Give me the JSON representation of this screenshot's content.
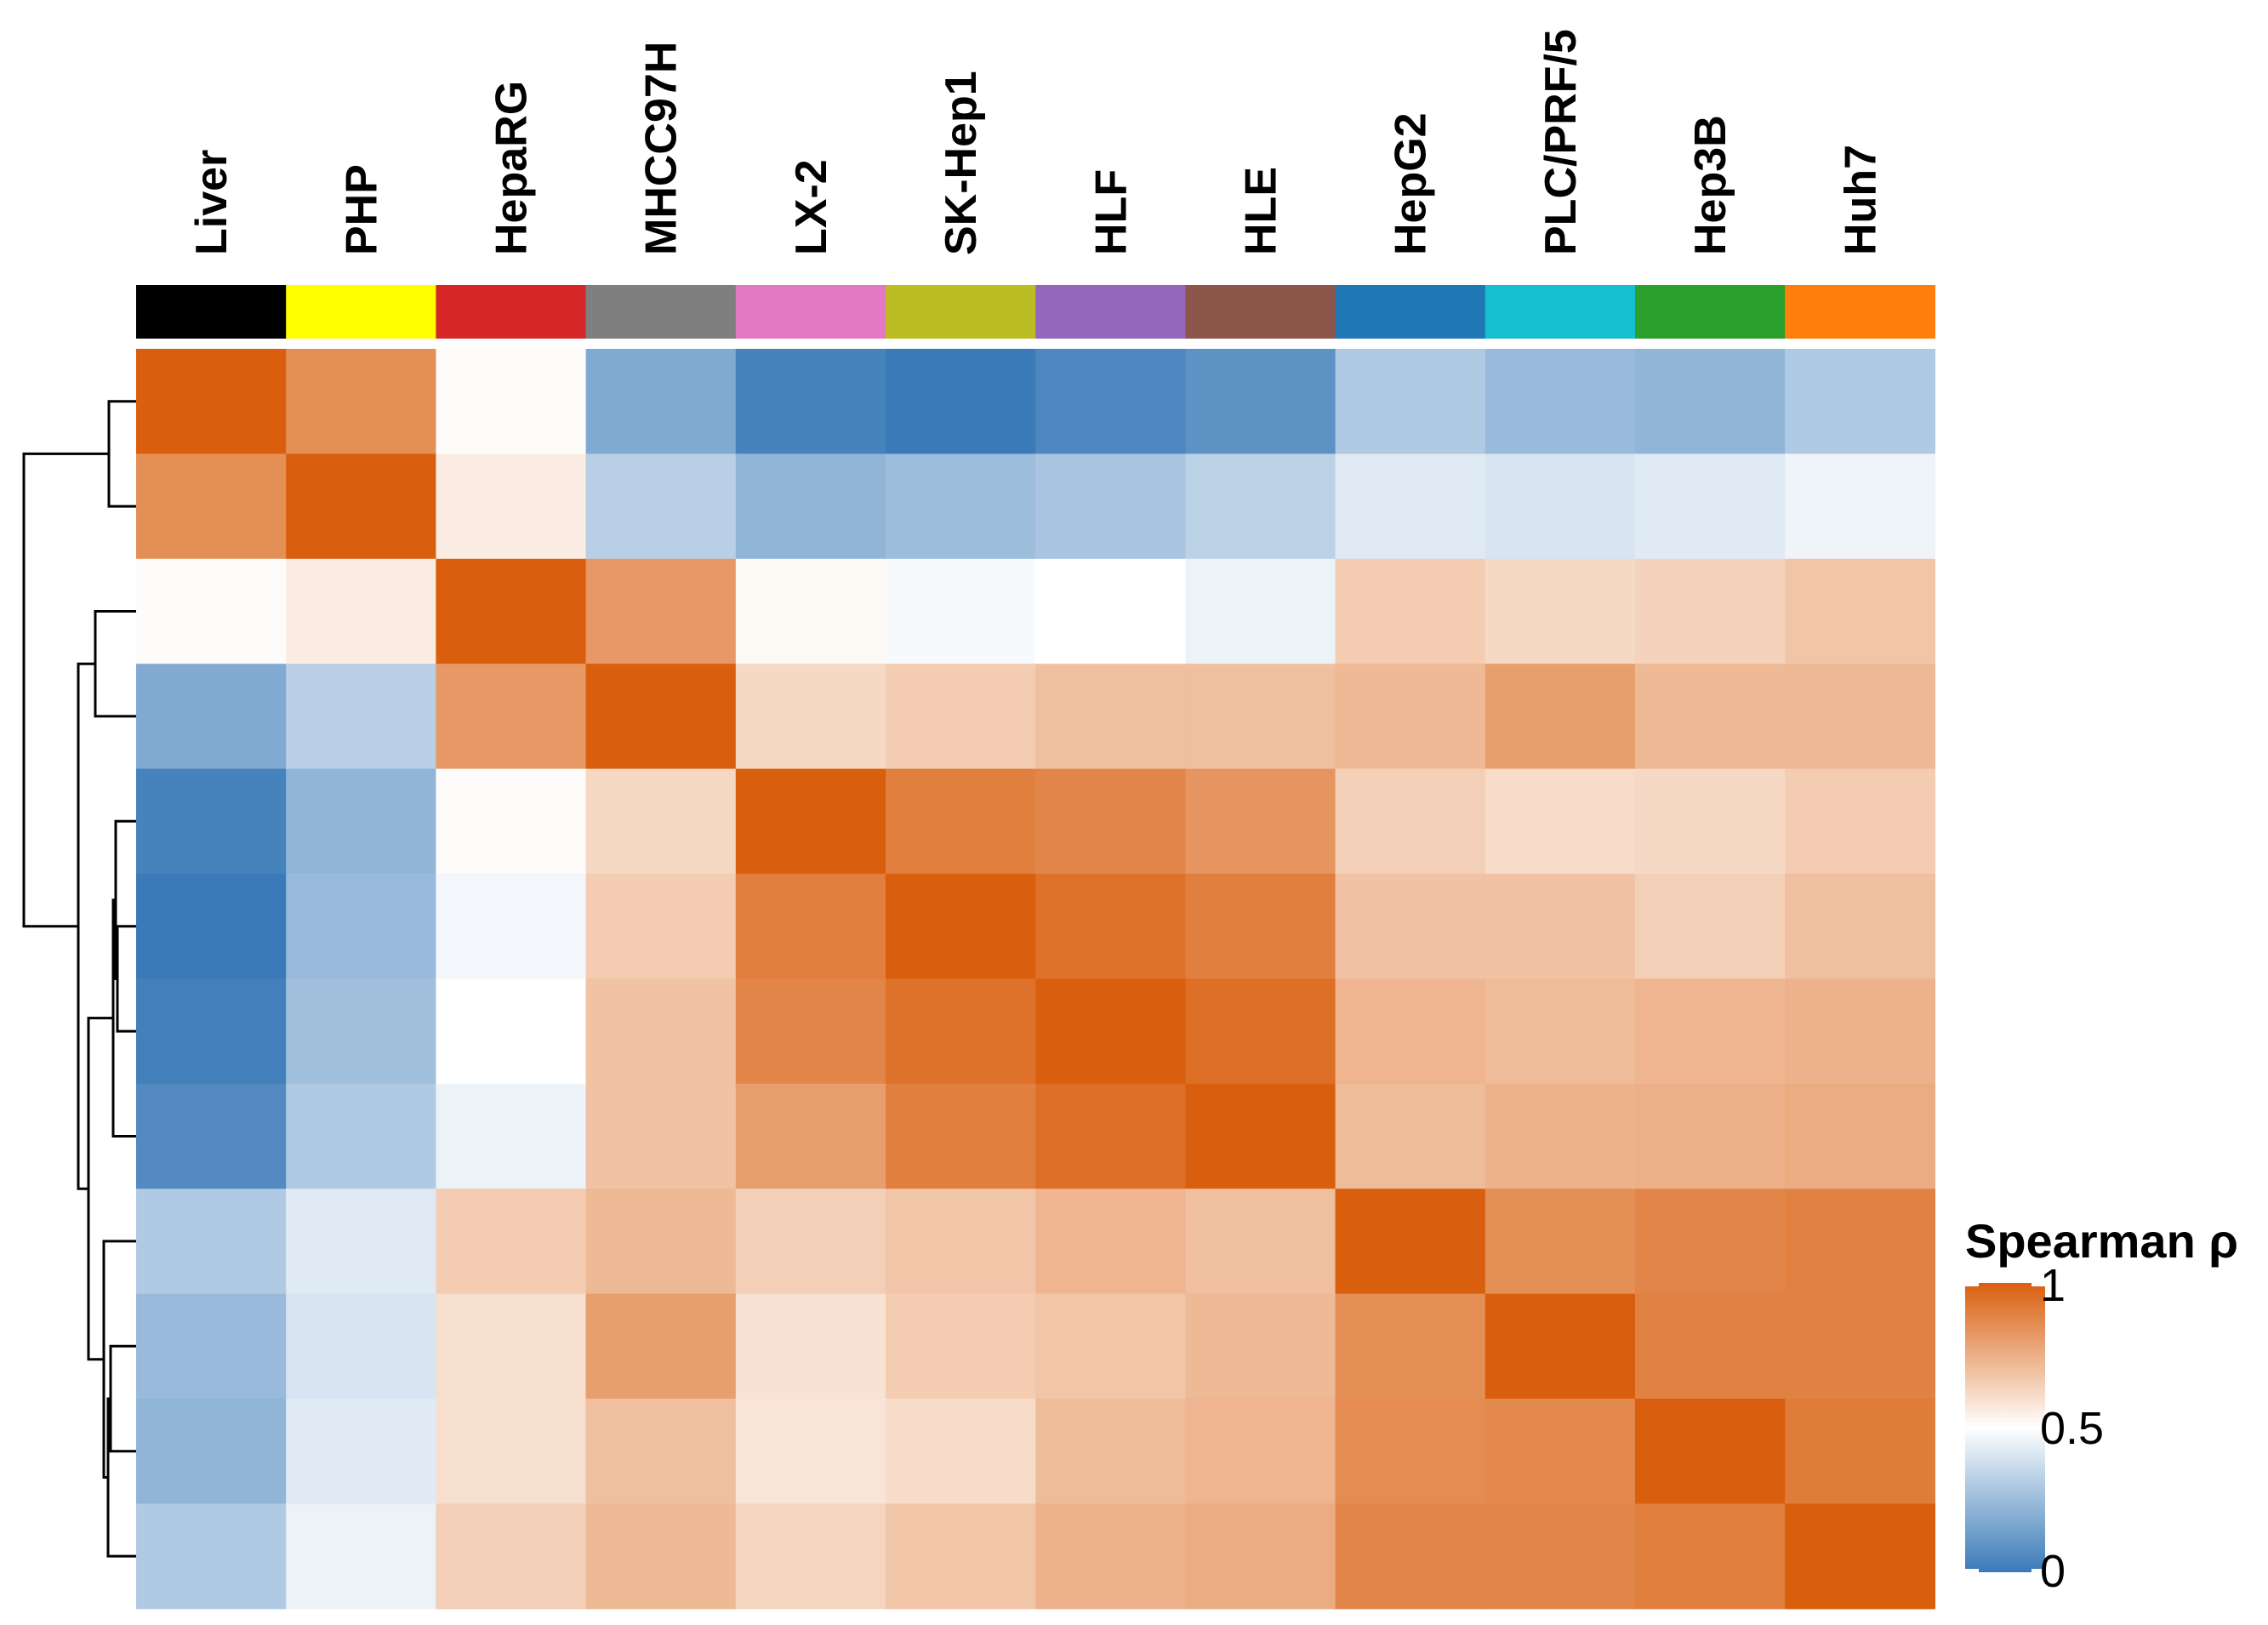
{
  "chart_data": {
    "type": "heatmap",
    "title": "",
    "xlabel": "",
    "ylabel": "",
    "samples": [
      "Liver",
      "PHP",
      "HepaRG",
      "MHCC97H",
      "LX-2",
      "SK-Hep1",
      "HLF",
      "HLE",
      "HepG2",
      "PLC/PRF/5",
      "Hep3B",
      "Huh7"
    ],
    "annotation_colors": [
      "#000000",
      "#ffff00",
      "#d62728",
      "#7f7f7f",
      "#e377c2",
      "#bcbd22",
      "#9467bd",
      "#8c564b",
      "#1f77b4",
      "#17becf",
      "#2ca02c",
      "#ff7f0e"
    ],
    "matrix": [
      [
        1.0,
        0.85,
        0.51,
        0.18,
        0.03,
        0.0,
        0.05,
        0.09,
        0.3,
        0.24,
        0.22,
        0.3
      ],
      [
        0.85,
        1.0,
        0.56,
        0.32,
        0.22,
        0.25,
        0.28,
        0.33,
        0.42,
        0.4,
        0.42,
        0.46
      ],
      [
        0.51,
        0.56,
        1.0,
        0.82,
        0.52,
        0.48,
        0.5,
        0.45,
        0.66,
        0.62,
        0.64,
        0.68
      ],
      [
        0.18,
        0.32,
        0.82,
        1.0,
        0.62,
        0.66,
        0.7,
        0.7,
        0.72,
        0.8,
        0.72,
        0.72
      ],
      [
        0.03,
        0.22,
        0.51,
        0.62,
        1.0,
        0.9,
        0.88,
        0.83,
        0.65,
        0.61,
        0.62,
        0.66
      ],
      [
        0.0,
        0.24,
        0.47,
        0.66,
        0.9,
        1.0,
        0.94,
        0.9,
        0.69,
        0.69,
        0.65,
        0.7
      ],
      [
        0.02,
        0.26,
        0.5,
        0.69,
        0.88,
        0.94,
        1.0,
        0.95,
        0.73,
        0.71,
        0.73,
        0.74
      ],
      [
        0.06,
        0.3,
        0.45,
        0.69,
        0.8,
        0.9,
        0.95,
        1.0,
        0.71,
        0.74,
        0.75,
        0.76
      ],
      [
        0.3,
        0.42,
        0.66,
        0.72,
        0.65,
        0.68,
        0.73,
        0.7,
        1.0,
        0.85,
        0.88,
        0.89
      ],
      [
        0.24,
        0.4,
        0.6,
        0.8,
        0.59,
        0.66,
        0.68,
        0.72,
        0.85,
        1.0,
        0.89,
        0.89
      ],
      [
        0.22,
        0.42,
        0.6,
        0.7,
        0.58,
        0.61,
        0.71,
        0.73,
        0.86,
        0.87,
        1.0,
        0.91
      ],
      [
        0.3,
        0.45,
        0.65,
        0.72,
        0.63,
        0.68,
        0.74,
        0.76,
        0.88,
        0.88,
        0.9,
        1.0
      ]
    ],
    "legend": {
      "title": "Spearman ρ",
      "min": 0,
      "max": 1,
      "ticks": [
        {
          "value": 0,
          "label": "0"
        },
        {
          "value": 0.5,
          "label": "0.5"
        },
        {
          "value": 1,
          "label": "1"
        }
      ],
      "low_color": "#3a7ab8",
      "mid_color": "#ffffff",
      "high_color": "#d95f0e"
    },
    "dendrogram": "rows"
  }
}
